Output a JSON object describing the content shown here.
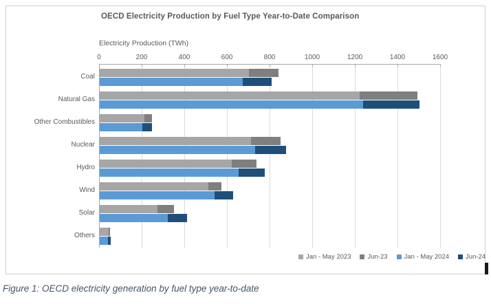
{
  "caption": "Figure 1: OECD electricity generation by fuel type year-to-date",
  "chart_data": {
    "type": "bar",
    "orientation": "horizontal",
    "description": "Grouped pairs of stacked horizontal bars: prior-year (grays) vs current-year (blues) per fuel type",
    "title": "OECD Electricity Production by Fuel Type Year-to-Date Comparison",
    "axis_title": "Electricity Production (TWh)",
    "xlim": [
      0,
      1600
    ],
    "x_ticks": [
      0,
      200,
      400,
      600,
      800,
      1000,
      1200,
      1400,
      1600
    ],
    "grid": true,
    "legend_position": "bottom-right",
    "categories": [
      "Coal",
      "Natural Gas",
      "Other Combustibles",
      "Nuclear",
      "Hydro",
      "Wind",
      "Solar",
      "Others"
    ],
    "series": [
      {
        "name": "Jan - May 2023",
        "color": "#a6a6a6",
        "bar_group": "prior-year",
        "values": [
          700,
          1220,
          210,
          710,
          620,
          510,
          270,
          42
        ]
      },
      {
        "name": "Jun-23",
        "color": "#7f7f7f",
        "bar_group": "prior-year",
        "values": [
          140,
          270,
          35,
          140,
          115,
          60,
          80,
          8
        ]
      },
      {
        "name": "Jan - May 2024",
        "color": "#5b9bd5",
        "bar_group": "current-year",
        "values": [
          670,
          1235,
          200,
          730,
          650,
          540,
          320,
          38
        ]
      },
      {
        "name": "Jun-24",
        "color": "#1f4e79",
        "bar_group": "current-year",
        "values": [
          135,
          265,
          45,
          145,
          125,
          85,
          90,
          14
        ]
      }
    ]
  },
  "style": {
    "gridline_color": "#d9d9d9",
    "axis_color": "#a6a6a6",
    "text_color": "#595959",
    "caption_color": "#44546a",
    "frame_border_color": "#d2cfcf"
  }
}
